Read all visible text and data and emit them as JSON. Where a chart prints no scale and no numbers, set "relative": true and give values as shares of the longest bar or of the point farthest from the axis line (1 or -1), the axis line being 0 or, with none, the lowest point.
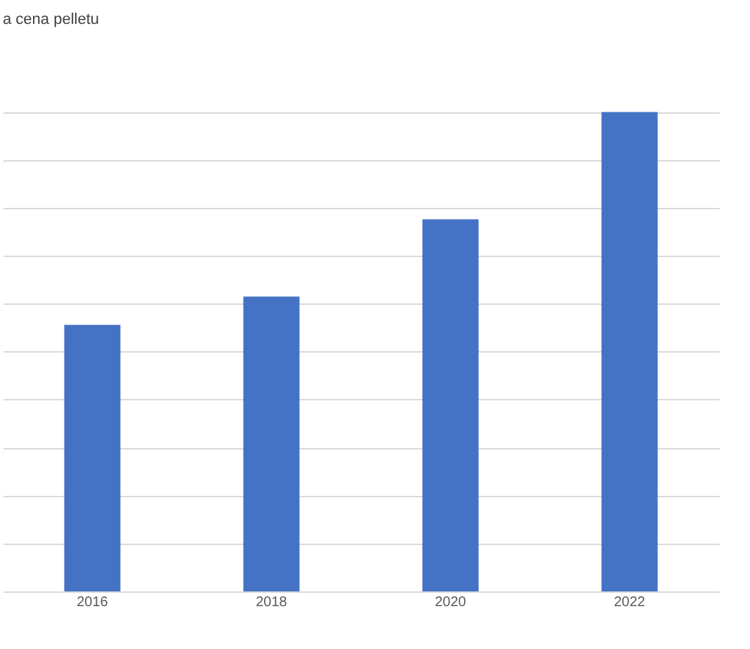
{
  "chart_data": {
    "type": "bar",
    "title": "a cena pelletu",
    "categories": [
      "2016",
      "2018",
      "2020",
      "2022"
    ],
    "values": [
      0.556,
      0.615,
      0.776,
      1.0
    ],
    "color": "#4472c4",
    "relative": true,
    "grid": "y"
  }
}
